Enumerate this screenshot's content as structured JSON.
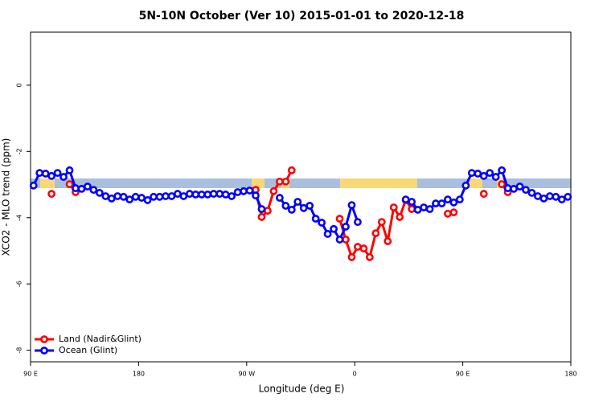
{
  "chart_data": {
    "type": "line",
    "title": "5N-10N October (Ver 10)   2015-01-01 to 2020-12-18",
    "x_label": "Longitude (deg E)",
    "y_label": "XCO2 - MLO trend (ppm)",
    "xlim": [
      90,
      540
    ],
    "ylim": [
      -8.35,
      1.6
    ],
    "xticks": [
      {
        "value": 90,
        "label": "90 E"
      },
      180,
      {
        "value": 270,
        "label": "90 W"
      },
      {
        "value": 360,
        "label": "0"
      },
      {
        "value": 450,
        "label": "90 E"
      },
      {
        "value": 540,
        "label": "180"
      }
    ],
    "yticks": [
      0,
      -2,
      -4,
      -6,
      -8
    ],
    "legend": "bottom-left",
    "x": [
      92.5,
      97.5,
      102.5,
      107.5,
      112.5,
      117.5,
      122.5,
      127.5,
      132.5,
      137.5,
      142.5,
      147.5,
      152.5,
      157.5,
      162.5,
      167.5,
      172.5,
      177.5,
      182.5,
      187.5,
      192.5,
      197.5,
      202.5,
      207.5,
      212.5,
      217.5,
      222.5,
      227.5,
      232.5,
      237.5,
      242.5,
      247.5,
      252.5,
      257.5,
      262.5,
      267.5,
      272.5,
      277.5,
      282.5,
      287.5,
      292.5,
      297.5,
      302.5,
      307.5,
      312.5,
      317.5,
      322.5,
      327.5,
      332.5,
      337.5,
      342.5,
      347.5,
      352.5,
      357.5,
      362.5,
      367.5,
      372.5,
      377.5,
      382.5,
      387.5,
      392.5,
      397.5,
      402.5,
      407.5,
      412.5,
      417.5,
      422.5,
      427.5,
      432.5,
      437.5,
      442.5,
      447.5,
      452.5,
      457.5,
      462.5,
      467.5,
      472.5,
      477.5,
      482.5,
      487.5,
      492.5,
      497.5,
      502.5,
      507.5,
      512.5,
      517.5,
      522.5,
      527.5,
      532.5,
      537.5
    ],
    "series": [
      {
        "name": "Land (Nadir&Glint)",
        "color": "#ff0000",
        "values": [
          null,
          null,
          null,
          -3.28,
          null,
          null,
          -2.99,
          -3.23,
          null,
          null,
          null,
          null,
          null,
          null,
          null,
          null,
          null,
          null,
          null,
          null,
          null,
          null,
          null,
          null,
          null,
          null,
          null,
          null,
          null,
          null,
          null,
          null,
          null,
          null,
          null,
          null,
          null,
          -3.16,
          -3.98,
          -3.79,
          -3.2,
          -2.91,
          -2.91,
          -2.57,
          null,
          null,
          null,
          null,
          null,
          null,
          null,
          -4.03,
          -4.66,
          -5.19,
          -4.88,
          -4.93,
          -5.19,
          -4.47,
          -4.13,
          -4.71,
          -3.69,
          -3.98,
          -3.47,
          -3.74,
          null,
          null,
          null,
          null,
          null,
          -3.88,
          -3.84,
          null,
          null,
          null,
          null,
          -3.28,
          null,
          null,
          -2.99,
          -3.23,
          null,
          null,
          null,
          null,
          null,
          null,
          null,
          null,
          null,
          null
        ]
      },
      {
        "name": "Ocean (Glint)",
        "color": "#0000ff",
        "values": [
          -3.03,
          -2.65,
          -2.67,
          -2.74,
          -2.65,
          -2.77,
          -2.57,
          -3.11,
          -3.13,
          -3.06,
          -3.16,
          -3.25,
          -3.35,
          -3.42,
          -3.35,
          -3.37,
          -3.45,
          -3.37,
          -3.4,
          -3.47,
          -3.37,
          -3.37,
          -3.35,
          -3.35,
          -3.28,
          -3.35,
          -3.28,
          -3.3,
          -3.3,
          -3.3,
          -3.28,
          -3.28,
          -3.3,
          -3.35,
          -3.23,
          -3.2,
          -3.18,
          -3.33,
          -3.74,
          null,
          null,
          -3.4,
          -3.64,
          -3.76,
          -3.52,
          -3.71,
          -3.64,
          -4.03,
          -4.15,
          -4.49,
          -4.34,
          -4.66,
          -4.27,
          -3.62,
          -4.13,
          null,
          null,
          null,
          null,
          null,
          null,
          null,
          -3.45,
          -3.52,
          -3.76,
          -3.69,
          -3.74,
          -3.57,
          -3.57,
          -3.45,
          -3.54,
          -3.45,
          -3.03,
          -2.65,
          -2.67,
          -2.74,
          -2.65,
          -2.77,
          -2.57,
          -3.11,
          -3.13,
          -3.06,
          -3.16,
          -3.25,
          -3.35,
          -3.42,
          -3.35,
          -3.37,
          -3.45,
          -3.37
        ]
      }
    ]
  }
}
